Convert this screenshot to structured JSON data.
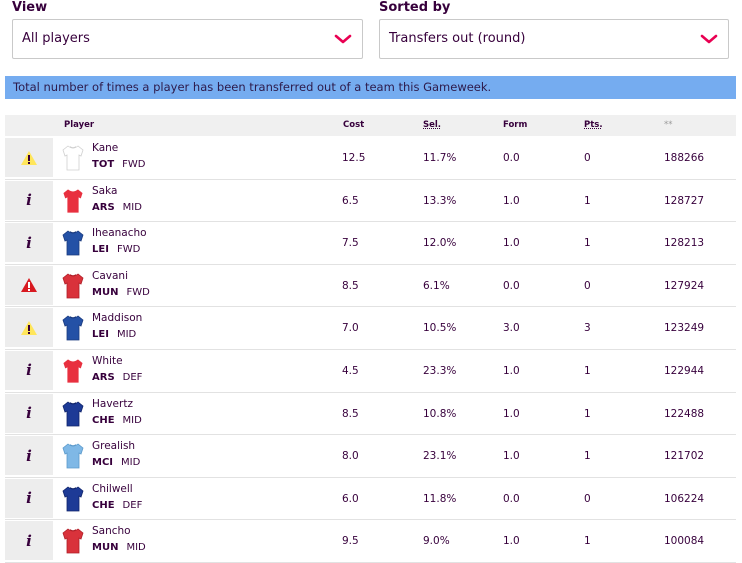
{
  "filters": {
    "view_label": "View",
    "view_value": "All players",
    "sort_label": "Sorted by",
    "sort_value": "Transfers out (round)"
  },
  "info_text": "Total number of times a player has been transferred out of a team this Gameweek.",
  "columns": {
    "player": "Player",
    "cost": "Cost",
    "sel": "Sel.",
    "form": "Form",
    "pts": "Pts.",
    "stat": "**"
  },
  "colors": {
    "accent": "#e90052",
    "info_bar": "#75acf0",
    "text": "#37003c",
    "warn_yellow": "#ffe65b",
    "warn_red": "#d81920"
  },
  "players": [
    {
      "status_icon": "yellow-warning-icon",
      "name": "Kane",
      "team": "TOT",
      "pos": "FWD",
      "cost": "12.5",
      "sel": "11.7%",
      "form": "0.0",
      "pts": "0",
      "stat": "188266",
      "shirt": "#ffffff",
      "trim": "#d0d0d0"
    },
    {
      "status_icon": "info-icon",
      "name": "Saka",
      "team": "ARS",
      "pos": "MID",
      "cost": "6.5",
      "sel": "13.3%",
      "form": "1.0",
      "pts": "1",
      "stat": "128727",
      "shirt": "#e8303f",
      "trim": "#ffffff"
    },
    {
      "status_icon": "info-icon",
      "name": "Iheanacho",
      "team": "LEI",
      "pos": "FWD",
      "cost": "7.5",
      "sel": "12.0%",
      "form": "1.0",
      "pts": "1",
      "stat": "128213",
      "shirt": "#2451a6",
      "trim": "#1a3a7e"
    },
    {
      "status_icon": "red-warning-icon",
      "name": "Cavani",
      "team": "MUN",
      "pos": "FWD",
      "cost": "8.5",
      "sel": "6.1%",
      "form": "0.0",
      "pts": "0",
      "stat": "127924",
      "shirt": "#d9323b",
      "trim": "#b01f28"
    },
    {
      "status_icon": "yellow-warning-icon",
      "name": "Maddison",
      "team": "LEI",
      "pos": "MID",
      "cost": "7.0",
      "sel": "10.5%",
      "form": "3.0",
      "pts": "3",
      "stat": "123249",
      "shirt": "#2451a6",
      "trim": "#1a3a7e"
    },
    {
      "status_icon": "info-icon",
      "name": "White",
      "team": "ARS",
      "pos": "DEF",
      "cost": "4.5",
      "sel": "23.3%",
      "form": "1.0",
      "pts": "1",
      "stat": "122944",
      "shirt": "#e8303f",
      "trim": "#ffffff"
    },
    {
      "status_icon": "info-icon",
      "name": "Havertz",
      "team": "CHE",
      "pos": "MID",
      "cost": "8.5",
      "sel": "10.8%",
      "form": "1.0",
      "pts": "1",
      "stat": "122488",
      "shirt": "#1d3a96",
      "trim": "#10246b"
    },
    {
      "status_icon": "info-icon",
      "name": "Grealish",
      "team": "MCI",
      "pos": "MID",
      "cost": "8.0",
      "sel": "23.1%",
      "form": "1.0",
      "pts": "1",
      "stat": "121702",
      "shirt": "#7fb8e6",
      "trim": "#5c9acb"
    },
    {
      "status_icon": "info-icon",
      "name": "Chilwell",
      "team": "CHE",
      "pos": "DEF",
      "cost": "6.0",
      "sel": "11.8%",
      "form": "0.0",
      "pts": "0",
      "stat": "106224",
      "shirt": "#1d3a96",
      "trim": "#10246b"
    },
    {
      "status_icon": "info-icon",
      "name": "Sancho",
      "team": "MUN",
      "pos": "MID",
      "cost": "9.5",
      "sel": "9.0%",
      "form": "1.0",
      "pts": "1",
      "stat": "100084",
      "shirt": "#d9323b",
      "trim": "#b01f28"
    }
  ]
}
